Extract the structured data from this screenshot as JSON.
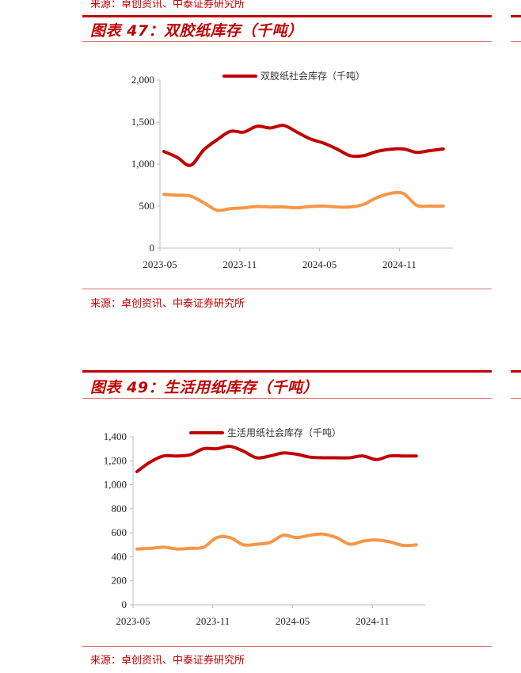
{
  "top_source": "来源：卓创资讯、中泰证券研究所",
  "colors": {
    "accent": "#c00000",
    "series_red": "#c00000",
    "series_orange": "#f79646"
  },
  "chart_data": [
    {
      "type": "line",
      "title": "图表 47：双胶纸库存（千吨）",
      "source": "来源：卓创资讯、中泰证券研究所",
      "ylim": [
        0,
        2000
      ],
      "yticks": [
        "0",
        "500",
        "1,000",
        "1,500",
        "2,000"
      ],
      "ytick_values": [
        0,
        500,
        1000,
        1500,
        2000
      ],
      "xticks": [
        "2023-05",
        "2023-11",
        "2024-05",
        "2024-11"
      ],
      "x": [
        "2023-05",
        "2023-06",
        "2023-07",
        "2023-08",
        "2023-09",
        "2023-10",
        "2023-11",
        "2023-12",
        "2024-01",
        "2024-02",
        "2024-03",
        "2024-04",
        "2024-05",
        "2024-06",
        "2024-07",
        "2024-08",
        "2024-09",
        "2024-10",
        "2024-11",
        "2024-12",
        "2025-01",
        "2025-02"
      ],
      "legend": "top",
      "grid": false,
      "series": [
        {
          "name": "双胶纸社会库存（千吨）",
          "color": "#c00000",
          "values": [
            1150,
            1080,
            985,
            1170,
            1290,
            1390,
            1380,
            1450,
            1430,
            1460,
            1380,
            1300,
            1250,
            1180,
            1100,
            1100,
            1150,
            1175,
            1180,
            1140,
            1160,
            1180
          ]
        },
        {
          "color": "#f79646",
          "values": [
            640,
            630,
            620,
            540,
            450,
            470,
            480,
            495,
            490,
            490,
            480,
            495,
            500,
            490,
            490,
            520,
            600,
            650,
            650,
            510,
            500,
            500
          ]
        }
      ]
    },
    {
      "type": "line",
      "title": "图表 49：生活用纸库存（千吨）",
      "source": "来源：卓创资讯、中泰证券研究所",
      "ylim": [
        0,
        1400
      ],
      "yticks": [
        "0",
        "200",
        "400",
        "600",
        "800",
        "1,000",
        "1,200",
        "1,400"
      ],
      "ytick_values": [
        0,
        200,
        400,
        600,
        800,
        1000,
        1200,
        1400
      ],
      "xticks": [
        "2023-05",
        "2023-11",
        "2024-05",
        "2024-11"
      ],
      "x": [
        "2023-05",
        "2023-06",
        "2023-07",
        "2023-08",
        "2023-09",
        "2023-10",
        "2023-11",
        "2023-12",
        "2024-01",
        "2024-02",
        "2024-03",
        "2024-04",
        "2024-05",
        "2024-06",
        "2024-07",
        "2024-08",
        "2024-09",
        "2024-10",
        "2024-11",
        "2024-12",
        "2025-01",
        "2025-02"
      ],
      "legend": "top",
      "grid": false,
      "series": [
        {
          "name": "生活用纸社会库存（千吨）",
          "color": "#c00000",
          "values": [
            1110,
            1190,
            1240,
            1240,
            1250,
            1300,
            1300,
            1320,
            1280,
            1225,
            1240,
            1265,
            1255,
            1230,
            1225,
            1225,
            1225,
            1240,
            1210,
            1240,
            1240,
            1240
          ]
        },
        {
          "color": "#f79646",
          "values": [
            465,
            470,
            480,
            465,
            470,
            480,
            560,
            560,
            500,
            505,
            520,
            580,
            560,
            580,
            590,
            560,
            505,
            530,
            540,
            525,
            495,
            500
          ]
        }
      ]
    }
  ]
}
